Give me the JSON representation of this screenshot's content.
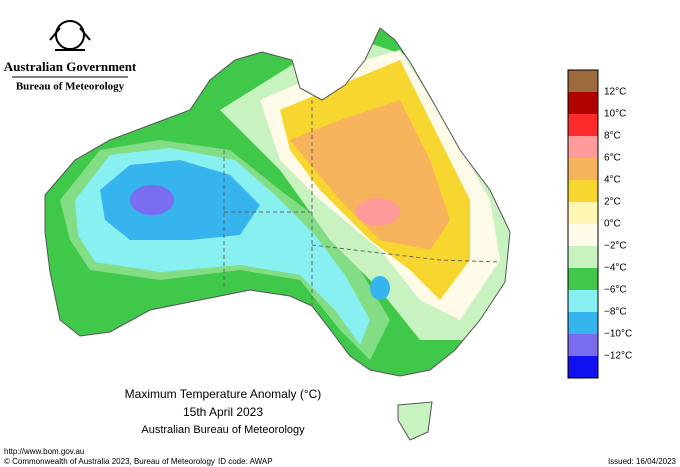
{
  "header": {
    "government": "Australian Government",
    "agency": "Bureau of Meteorology"
  },
  "title": {
    "line1": "Maximum Temperature Anomaly (°C)",
    "line2": "15th April 2023",
    "line3": "Australian Bureau of Meteorology"
  },
  "legend": {
    "colors": [
      "#9c6a3c",
      "#b00000",
      "#ff2a2a",
      "#ff9a9a",
      "#f7b25c",
      "#f8d630",
      "#fff6b4",
      "#fffbe8",
      "#c8f2c0",
      "#3fc84a",
      "#88f0f0",
      "#35b4ee",
      "#7a6cf0",
      "#1010f0"
    ],
    "labels": [
      "12°C",
      "10°C",
      "8°C",
      "6°C",
      "4°C",
      "2°C",
      "0°C",
      "−2°C",
      "−4°C",
      "−6°C",
      "−8°C",
      "−10°C",
      "−12°C"
    ]
  },
  "footer": {
    "url": "http://www.bom.gov.au",
    "copyright": "© Commonwealth of Australia 2023, Bureau of Meteorology",
    "id_code": "ID code: AWAP",
    "issued": "Issued: 16/04/2023"
  }
}
